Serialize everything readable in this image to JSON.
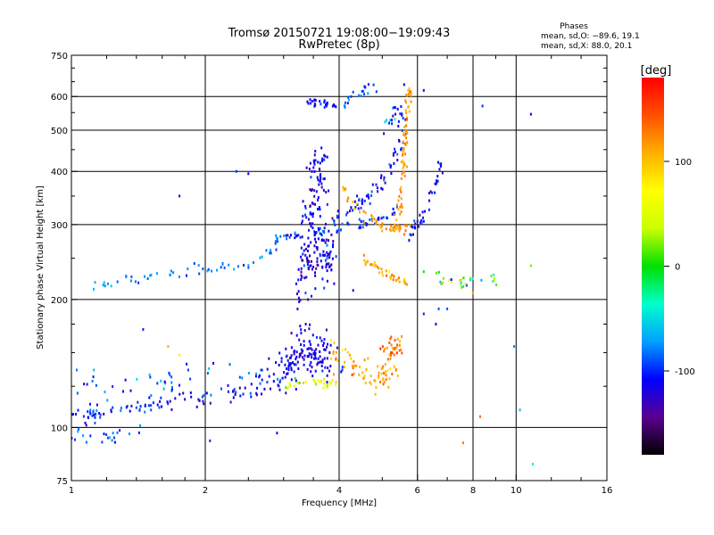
{
  "chart_data": {
    "type": "scatter",
    "title": "Tromsø 20150721 19:08:00−19:09:43",
    "subtitle": "RwPretec (8p)",
    "xlabel": "Frequency [MHz]",
    "ylabel": "Stationary phase Virtual Height [km]",
    "x_scale": "log",
    "y_scale": "log",
    "xlim": [
      1,
      16
    ],
    "ylim": [
      75,
      750
    ],
    "x_ticks": [
      1,
      2,
      4,
      6,
      8,
      10,
      16
    ],
    "y_ticks": [
      75,
      100,
      200,
      300,
      400,
      500,
      600,
      750
    ],
    "grid": true,
    "legend": {
      "title": "Phases",
      "lines": [
        "mean, sd,O: −89.6, 19.1",
        "mean, sd,X:  88.0, 20.1"
      ],
      "position": "top-right"
    },
    "colorbar": {
      "label": "[deg]",
      "min": -180,
      "max": 180,
      "ticks": [
        100,
        0,
        -100
      ],
      "colors": [
        "#000000",
        "#5a0090",
        "#0000ff",
        "#00a0ff",
        "#00ffcc",
        "#00e000",
        "#ccff00",
        "#ffff00",
        "#ffb000",
        "#ff5000",
        "#ff0000"
      ]
    },
    "clusters": [
      {
        "trace": [
          [
            1.0,
            106
          ],
          [
            1.15,
            109
          ],
          [
            1.3,
            111
          ],
          [
            1.5,
            113
          ],
          [
            1.7,
            116
          ],
          [
            2.0,
            118
          ],
          [
            2.3,
            121
          ],
          [
            2.6,
            124
          ],
          [
            2.9,
            128
          ]
        ],
        "spread": 0.025,
        "count": 110,
        "phase": -105,
        "phase_sd": 18
      },
      {
        "trace": [
          [
            1.0,
            94
          ],
          [
            1.1,
            95
          ],
          [
            1.25,
            96
          ],
          [
            1.4,
            97
          ]
        ],
        "spread": 0.03,
        "count": 22,
        "phase": -85,
        "phase_sd": 15
      },
      {
        "trace": [
          [
            1.0,
            128
          ],
          [
            1.15,
            125
          ],
          [
            1.35,
            124
          ],
          [
            1.6,
            127
          ],
          [
            1.85,
            133
          ],
          [
            2.1,
            135
          ],
          [
            2.5,
            133
          ],
          [
            2.9,
            130
          ]
        ],
        "spread": 0.03,
        "count": 45,
        "phase": -95,
        "phase_sd": 20
      },
      {
        "trace": [
          [
            1.1,
            215
          ],
          [
            1.3,
            220
          ],
          [
            1.6,
            228
          ],
          [
            1.9,
            234
          ],
          [
            2.2,
            238
          ],
          [
            2.5,
            243
          ],
          [
            2.75,
            255
          ],
          [
            2.9,
            270
          ],
          [
            3.0,
            285
          ]
        ],
        "spread": 0.015,
        "count": 60,
        "phase": -80,
        "phase_sd": 12
      },
      {
        "trace": [
          [
            3.0,
            130
          ],
          [
            3.2,
            145
          ],
          [
            3.4,
            160
          ],
          [
            3.6,
            150
          ],
          [
            3.9,
            140
          ]
        ],
        "spread": 0.06,
        "count": 140,
        "phase": -115,
        "phase_sd": 10
      },
      {
        "trace": [
          [
            3.0,
            125
          ],
          [
            3.3,
            128
          ],
          [
            3.6,
            127
          ],
          [
            3.95,
            126
          ]
        ],
        "spread": 0.012,
        "count": 30,
        "phase": 60,
        "phase_sd": 20
      },
      {
        "trace": [
          [
            3.9,
            150
          ],
          [
            4.2,
            140
          ],
          [
            4.6,
            135
          ],
          [
            5.0,
            133
          ],
          [
            5.3,
            136
          ]
        ],
        "spread": 0.04,
        "count": 70,
        "phase": 110,
        "phase_sd": 15
      },
      {
        "trace": [
          [
            5.0,
            150
          ],
          [
            5.3,
            155
          ],
          [
            5.6,
            158
          ]
        ],
        "spread": 0.03,
        "count": 30,
        "phase": 130,
        "phase_sd": 15
      },
      {
        "trace": [
          [
            3.3,
            200
          ],
          [
            3.45,
            250
          ],
          [
            3.5,
            300
          ],
          [
            3.55,
            360
          ],
          [
            3.6,
            430
          ]
        ],
        "spread": 0.05,
        "count": 150,
        "phase": -115,
        "phase_sd": 12
      },
      {
        "trace": [
          [
            3.7,
            225
          ],
          [
            3.75,
            250
          ],
          [
            3.8,
            270
          ]
        ],
        "spread": 0.04,
        "count": 50,
        "phase": -110,
        "phase_sd": 15
      },
      {
        "trace": [
          [
            3.0,
            280
          ],
          [
            3.5,
            285
          ],
          [
            4.0,
            292
          ],
          [
            4.5,
            300
          ],
          [
            5.0,
            310
          ],
          [
            5.4,
            325
          ]
        ],
        "spread": 0.012,
        "count": 60,
        "phase": -100,
        "phase_sd": 15
      },
      {
        "trace": [
          [
            3.8,
            300
          ],
          [
            4.2,
            320
          ],
          [
            4.6,
            345
          ],
          [
            5.0,
            380
          ],
          [
            5.3,
            420
          ],
          [
            5.5,
            480
          ],
          [
            5.6,
            560
          ]
        ],
        "spread": 0.02,
        "count": 70,
        "phase": -110,
        "phase_sd": 15
      },
      {
        "trace": [
          [
            3.4,
            580
          ],
          [
            3.7,
            575
          ],
          [
            3.95,
            570
          ]
        ],
        "spread": 0.01,
        "count": 25,
        "phase": -110,
        "phase_sd": 12
      },
      {
        "trace": [
          [
            4.1,
            575
          ],
          [
            4.3,
            600
          ],
          [
            4.6,
            620
          ],
          [
            4.9,
            630
          ]
        ],
        "spread": 0.015,
        "count": 20,
        "phase": -100,
        "phase_sd": 15
      },
      {
        "trace": [
          [
            4.5,
            250
          ],
          [
            4.9,
            235
          ],
          [
            5.3,
            225
          ],
          [
            5.7,
            218
          ]
        ],
        "spread": 0.01,
        "count": 40,
        "phase": 110,
        "phase_sd": 15
      },
      {
        "trace": [
          [
            4.0,
            370
          ],
          [
            4.6,
            310
          ],
          [
            5.2,
            290
          ],
          [
            5.7,
            295
          ]
        ],
        "spread": 0.015,
        "count": 50,
        "phase": 115,
        "phase_sd": 12
      },
      {
        "trace": [
          [
            5.4,
            300
          ],
          [
            5.55,
            380
          ],
          [
            5.6,
            450
          ],
          [
            5.7,
            560
          ],
          [
            5.75,
            640
          ]
        ],
        "spread": 0.015,
        "count": 70,
        "phase": 115,
        "phase_sd": 12
      },
      {
        "trace": [
          [
            5.7,
            280
          ],
          [
            6.0,
            300
          ],
          [
            6.3,
            330
          ],
          [
            6.6,
            370
          ],
          [
            6.8,
            420
          ]
        ],
        "spread": 0.015,
        "count": 40,
        "phase": -110,
        "phase_sd": 20
      },
      {
        "trace": [
          [
            6.2,
            225
          ],
          [
            6.8,
            222
          ],
          [
            7.4,
            220
          ],
          [
            8.0,
            218
          ],
          [
            8.6,
            220
          ],
          [
            9.2,
            222
          ]
        ],
        "spread": 0.02,
        "count": 30,
        "phase": 20,
        "phase_sd": 50
      },
      {
        "trace": [
          [
            5.0,
            480
          ],
          [
            5.2,
            520
          ],
          [
            5.4,
            560
          ]
        ],
        "spread": 0.03,
        "count": 15,
        "phase": -90,
        "phase_sd": 30
      }
    ],
    "extra_points": [
      [
        1.75,
        350,
        -105
      ],
      [
        2.35,
        400,
        -95
      ],
      [
        2.5,
        395,
        -110
      ],
      [
        2.9,
        97,
        -120
      ],
      [
        2.05,
        93,
        -100
      ],
      [
        8.4,
        570,
        -100
      ],
      [
        10.8,
        545,
        -110
      ],
      [
        10.8,
        240,
        20
      ],
      [
        10.2,
        110,
        -60
      ],
      [
        10.9,
        82,
        -30
      ],
      [
        7.6,
        92,
        130
      ],
      [
        8.3,
        106,
        130
      ],
      [
        6.6,
        175,
        -110
      ],
      [
        6.2,
        185,
        -100
      ],
      [
        7.0,
        190,
        -90
      ],
      [
        9.9,
        155,
        -80
      ],
      [
        1.65,
        155,
        110
      ],
      [
        1.75,
        148,
        80
      ],
      [
        1.5,
        133,
        -60
      ],
      [
        1.45,
        170,
        -100
      ],
      [
        5.6,
        640,
        -110
      ],
      [
        6.2,
        620,
        -105
      ],
      [
        6.7,
        190,
        -90
      ],
      [
        3.3,
        150,
        -130
      ],
      [
        4.3,
        210,
        -120
      ]
    ],
    "seed": 21
  }
}
